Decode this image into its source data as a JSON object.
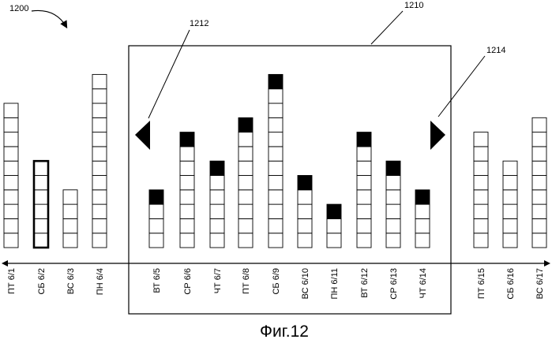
{
  "figure": {
    "caption": "Фиг.12",
    "refs": {
      "figure": "1200",
      "window": "1210",
      "left_arrow": "1212",
      "right_arrow": "1214"
    }
  },
  "days": [
    {
      "label": "ПТ 6/1",
      "cells": 10,
      "filled": false,
      "selected": false
    },
    {
      "label": "СБ 6/2",
      "cells": 6,
      "filled": false,
      "selected": true
    },
    {
      "label": "ВС 6/3",
      "cells": 4,
      "filled": false,
      "selected": false
    },
    {
      "label": "ПН 6/4",
      "cells": 12,
      "filled": false,
      "selected": false
    },
    {
      "label": "ВТ 6/5",
      "cells": 4,
      "filled": true,
      "selected": false
    },
    {
      "label": "СР 6/6",
      "cells": 8,
      "filled": true,
      "selected": false
    },
    {
      "label": "ЧТ 6/7",
      "cells": 6,
      "filled": true,
      "selected": false
    },
    {
      "label": "ПТ 6/8",
      "cells": 9,
      "filled": true,
      "selected": false
    },
    {
      "label": "СБ 6/9",
      "cells": 12,
      "filled": true,
      "selected": false
    },
    {
      "label": "ВС 6/10",
      "cells": 5,
      "filled": true,
      "selected": false
    },
    {
      "label": "ПН 6/11",
      "cells": 3,
      "filled": true,
      "selected": false
    },
    {
      "label": "ВТ 6/12",
      "cells": 8,
      "filled": true,
      "selected": false
    },
    {
      "label": "СР 6/13",
      "cells": 6,
      "filled": true,
      "selected": false
    },
    {
      "label": "ЧТ 6/14",
      "cells": 4,
      "filled": true,
      "selected": false
    },
    {
      "label": "ПТ 6/15",
      "cells": 8,
      "filled": false,
      "selected": false
    },
    {
      "label": "СБ 6/16",
      "cells": 6,
      "filled": false,
      "selected": false
    },
    {
      "label": "ВС 6/17",
      "cells": 9,
      "filled": false,
      "selected": false
    }
  ]
}
